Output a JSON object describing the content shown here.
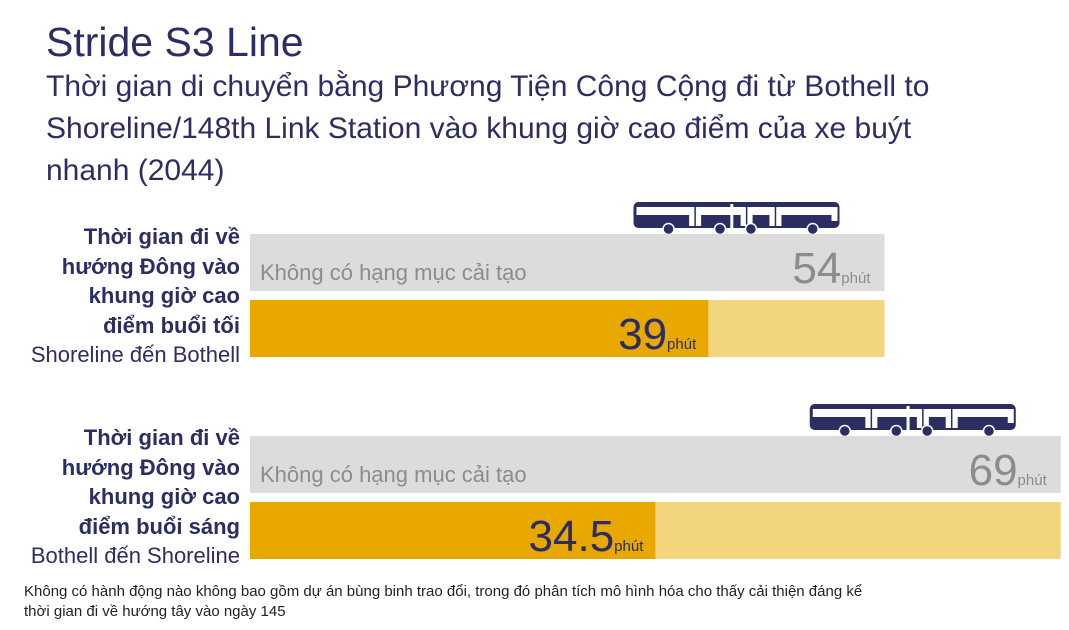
{
  "header": {
    "title": "Stride S3 Line",
    "subtitle": "Thời gian di chuyển bằng Phương Tiện Công Cộng đi từ Bothell to Shoreline/148th Link Station vào khung giờ cao điểm của xe buýt nhanh (2044)"
  },
  "groups": [
    {
      "label_lines": [
        "Thời gian đi về",
        "hướng Đông vào",
        "khung giờ cao",
        "điểm buổi tối"
      ],
      "route": "Shoreline đến Bothell"
    },
    {
      "label_lines": [
        "Thời gian đi về",
        "hướng Đông vào",
        "khung giờ cao",
        "điểm buổi sáng"
      ],
      "route": "Bothell đến Shoreline"
    }
  ],
  "chart_data": {
    "type": "bar",
    "unit": "phút",
    "colors": {
      "baseline": "#dcdcdc",
      "project": "#e8a800",
      "project_light": "#f3d57e",
      "baseline_text": "#8c8c8c",
      "value_text": "#2b2d63",
      "bus": "#2b2d63"
    },
    "series": [
      {
        "baseline_label": "Không có hạng mục cải tạo",
        "baseline_value": 54,
        "baseline_value_text": "54",
        "project_value": 39,
        "project_value_text": "39"
      },
      {
        "baseline_label": "Không có hạng mục cải tạo",
        "baseline_value": 69,
        "baseline_value_text": "69",
        "project_value": 34.5,
        "project_value_text": "34.5"
      }
    ]
  },
  "footnote": "Không có hành động nào không bao gồm dự án bùng binh trao đổi, trong đó phân tích mô hình hóa cho thấy cải thiện đáng kể thời gian đi về hướng tây vào ngày 145"
}
